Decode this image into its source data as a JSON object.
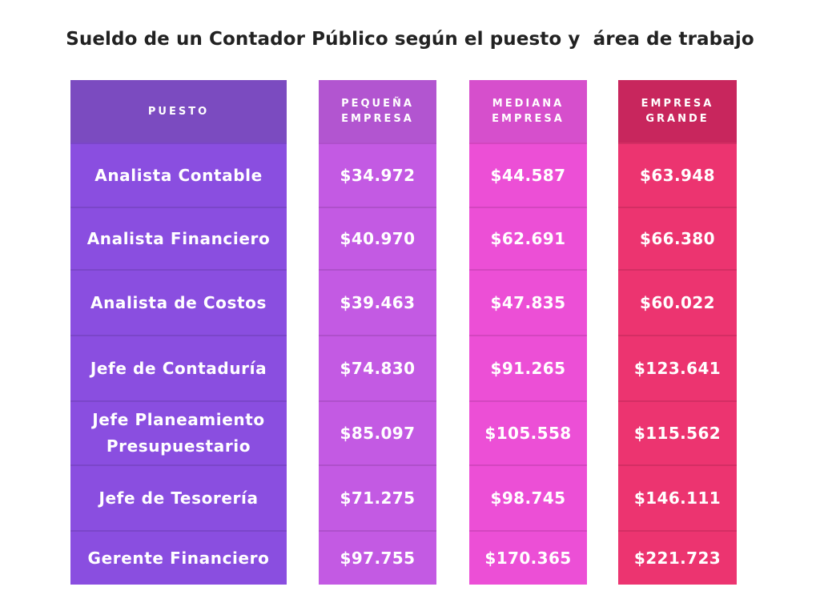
{
  "title": "Sueldo de un Contador Público según el puesto y  área de trabajo",
  "colors": {
    "puesto_header": "#7b4bc0",
    "puesto_body": "#8a4ee0",
    "pequena_header": "#b255d0",
    "pequena_body": "#c35ae3",
    "mediana_header": "#d64fcc",
    "mediana_body": "#ec4fd6",
    "grande_header": "#c8265d",
    "grande_body": "#ec3470"
  },
  "chart_data": {
    "type": "table",
    "title": "Sueldo de un Contador Público según el puesto y  área de trabajo",
    "columns": [
      {
        "key": "puesto",
        "label": "PUESTO"
      },
      {
        "key": "pequena",
        "label": "PEQUEÑA EMPRESA"
      },
      {
        "key": "mediana",
        "label": "MEDIANA EMPRESA"
      },
      {
        "key": "grande",
        "label": "EMPRESA GRANDE"
      }
    ],
    "puesto": [
      "Analista Contable",
      "Analista Financiero",
      "Analista de Costos",
      "Jefe de Contaduría",
      "Jefe Planeamiento Presupuestario",
      "Jefe de Tesorería",
      "Gerente Financiero"
    ],
    "pequena": [
      "$34.972",
      "$40.970",
      "$39.463",
      "$74.830",
      "$85.097",
      "$71.275",
      "$97.755"
    ],
    "mediana": [
      "$44.587",
      "$62.691",
      "$47.835",
      "$91.265",
      "$105.558",
      "$98.745",
      "$170.365"
    ],
    "grande": [
      "$63.948",
      "$66.380",
      "$60.022",
      "$123.641",
      "$115.562",
      "$146.111",
      "$221.723"
    ]
  }
}
